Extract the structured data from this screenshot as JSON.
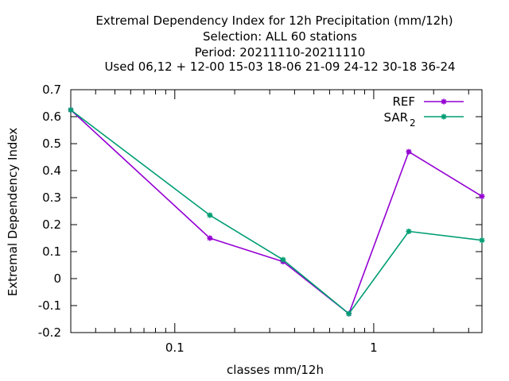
{
  "chart_data": {
    "type": "line",
    "title_lines": [
      "Extremal Dependency Index  for 12h Precipitation (mm/12h)",
      "Selection: ALL     60 stations",
      "Period: 20211110-20211110",
      "Used  06,12  + 12-00 15-03 18-06 21-09 24-12 30-18 36-24"
    ],
    "xlabel": "classes mm/12h",
    "ylabel": "Extremal Dependency Index",
    "x_scale": "log",
    "xlim": [
      0.03,
      3.5
    ],
    "ylim": [
      -0.2,
      0.7
    ],
    "x_tick_labels": [
      {
        "value": 0.1,
        "label": "0.1"
      },
      {
        "value": 1,
        "label": "1"
      }
    ],
    "y_ticks": [
      "-0.2",
      "-0.1",
      "0",
      "0.1",
      "0.2",
      "0.3",
      "0.4",
      "0.5",
      "0.6",
      "0.7"
    ],
    "grid": false,
    "legend_position": "top-right",
    "series": [
      {
        "name": "REF",
        "color": "#9400d3",
        "x": [
          0.03,
          0.15,
          0.35,
          0.75,
          1.5,
          3.5
        ],
        "y": [
          0.625,
          0.15,
          0.063,
          -0.13,
          0.47,
          0.305
        ]
      },
      {
        "name": "SAR",
        "name_subscript": "2",
        "color": "#009e73",
        "x": [
          0.03,
          0.15,
          0.35,
          0.75,
          1.5,
          3.5
        ],
        "y": [
          0.625,
          0.235,
          0.07,
          -0.13,
          0.175,
          0.142
        ]
      }
    ]
  }
}
